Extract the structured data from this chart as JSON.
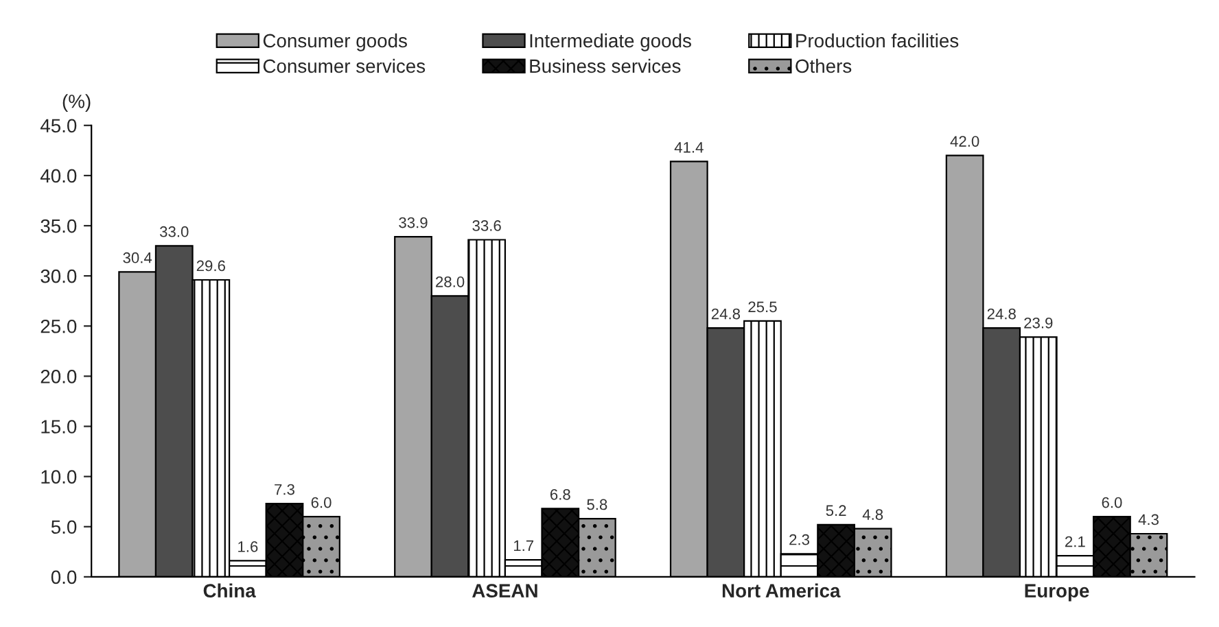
{
  "chart_data": {
    "type": "bar",
    "ylabel": "(%)",
    "categories": [
      "China",
      "ASEAN",
      "Nort America",
      "Europe"
    ],
    "series": [
      {
        "name": "Consumer goods",
        "color": "#a6a6a6",
        "values": [
          30.4,
          33.9,
          41.4,
          42.0
        ],
        "value_labels": [
          "30.4",
          "33.9",
          "41.4",
          "42.0"
        ]
      },
      {
        "name": "Intermediate goods",
        "color": "#4d4d4d",
        "values": [
          33.0,
          28.0,
          24.8,
          24.8
        ],
        "value_labels": [
          "33.0",
          "28.0",
          "24.8",
          "24.8"
        ]
      },
      {
        "name": "Production facilities",
        "color": "#ffffff",
        "values": [
          29.6,
          33.6,
          25.5,
          23.9
        ],
        "value_labels": [
          "29.6",
          "33.6",
          "25.5",
          "23.9"
        ]
      },
      {
        "name": "Consumer services",
        "color": "#ffffff",
        "values": [
          1.6,
          1.7,
          2.3,
          2.1
        ],
        "value_labels": [
          "1.6",
          "1.7",
          "2.3",
          "2.1"
        ]
      },
      {
        "name": "Business services",
        "color": "#111111",
        "values": [
          7.3,
          6.8,
          5.2,
          6.0
        ],
        "value_labels": [
          "7.3",
          "6.8",
          "5.2",
          "6.0"
        ]
      },
      {
        "name": "Others",
        "color": "#9a9a9a",
        "values": [
          6.0,
          5.8,
          4.8,
          4.3
        ],
        "value_labels": [
          "6.0",
          "5.8",
          "4.8",
          "4.3"
        ]
      }
    ],
    "ylim": [
      0,
      45
    ],
    "yticks": [
      {
        "value": 0,
        "label": "0.0"
      },
      {
        "value": 5,
        "label": "5.0"
      },
      {
        "value": 10,
        "label": "10.0"
      },
      {
        "value": 15,
        "label": "15.0"
      },
      {
        "value": 20,
        "label": "20.0"
      },
      {
        "value": 25,
        "label": "25.0"
      },
      {
        "value": 30,
        "label": "30.0"
      },
      {
        "value": 35,
        "label": "35.0"
      },
      {
        "value": 40,
        "label": "40.0"
      },
      {
        "value": 45,
        "label": "45.0"
      }
    ],
    "grid": false,
    "legend": "top"
  }
}
